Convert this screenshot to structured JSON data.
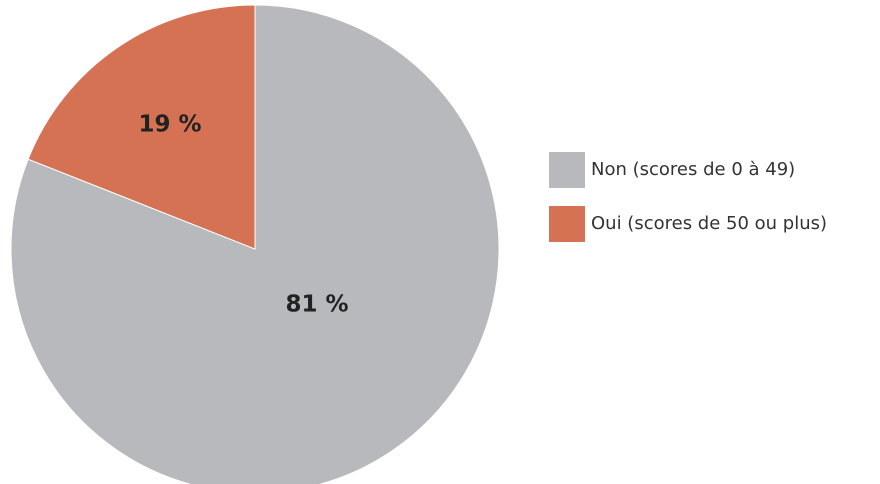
{
  "chart_data": {
    "type": "pie",
    "categories": [
      "Non (scores de 0 à 49)",
      "Oui (scores de 50 ou plus)"
    ],
    "values": [
      81,
      19
    ],
    "value_labels": [
      "81 %",
      "19 %"
    ],
    "colors": [
      "#b8b9bd",
      "#d57253"
    ],
    "legend": "right"
  }
}
